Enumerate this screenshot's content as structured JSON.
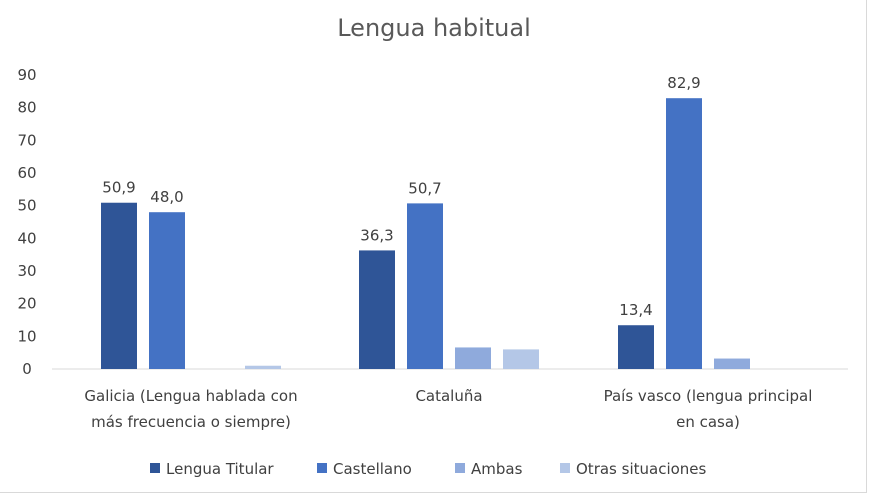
{
  "chart_data": {
    "type": "bar",
    "title": "Lengua habitual",
    "xlabel": "",
    "ylabel": "",
    "ylim": [
      0,
      90
    ],
    "yticks": [
      0,
      10,
      20,
      30,
      40,
      50,
      60,
      70,
      80,
      90
    ],
    "grid": false,
    "legend_position": "bottom",
    "categories": [
      [
        "Galicia (Lengua hablada con",
        "más frecuencia o siempre)"
      ],
      [
        "Cataluña"
      ],
      [
        "País vasco (lengua principal",
        "en casa)"
      ]
    ],
    "series": [
      {
        "name": "Lengua Titular",
        "color": "#2f5597",
        "values": [
          50.9,
          36.3,
          13.4
        ],
        "labels": [
          "50,9",
          "36,3",
          "13,4"
        ]
      },
      {
        "name": "Castellano",
        "color": "#4472c4",
        "values": [
          48.0,
          50.7,
          82.9
        ],
        "labels": [
          "48,0",
          "50,7",
          "82,9"
        ]
      },
      {
        "name": "Ambas",
        "color": "#8faadc",
        "values": [
          0,
          6.6,
          3.2
        ],
        "labels": [
          "",
          "",
          ""
        ]
      },
      {
        "name": "Otras situaciones",
        "color": "#b4c7e7",
        "values": [
          1.0,
          6.0,
          0
        ],
        "labels": [
          "",
          "",
          ""
        ]
      }
    ]
  }
}
